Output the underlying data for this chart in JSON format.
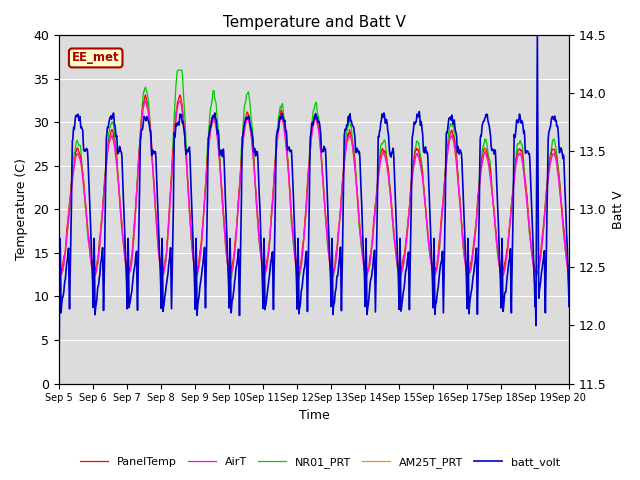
{
  "title": "Temperature and Batt V",
  "xlabel": "Time",
  "ylabel_left": "Temperature (C)",
  "ylabel_right": "Batt V",
  "ylim_left": [
    0,
    40
  ],
  "ylim_right": [
    11.5,
    14.5
  ],
  "annotation_text": "EE_met",
  "annotation_color": "#AA0000",
  "annotation_bg": "#FFFFCC",
  "annotation_border": "#AA0000",
  "bg_color": "#DCDCDC",
  "line_colors": {
    "PanelTemp": "#FF0000",
    "AirT": "#FF00FF",
    "NR01_PRT": "#00CC00",
    "AM25T_PRT": "#FF8C00",
    "batt_volt": "#0000CC"
  },
  "x_tick_labels": [
    "Sep 5",
    "Sep 6",
    "Sep 7",
    "Sep 8",
    "Sep 9",
    "Sep 10",
    "Sep 11",
    "Sep 12",
    "Sep 13",
    "Sep 14",
    "Sep 15",
    "Sep 16",
    "Sep 17",
    "Sep 18",
    "Sep 19",
    "Sep 20"
  ],
  "x_tick_positions": [
    0,
    24,
    48,
    72,
    96,
    120,
    144,
    168,
    192,
    216,
    240,
    264,
    288,
    312,
    336,
    360
  ],
  "num_points": 1081,
  "total_hours": 360
}
